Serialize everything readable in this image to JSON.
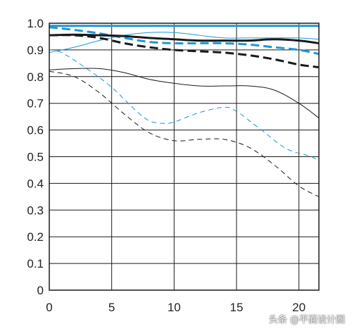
{
  "chart_data": {
    "type": "line",
    "title": "",
    "xlabel": "",
    "ylabel": "",
    "xlim": [
      0,
      21.6
    ],
    "ylim": [
      0,
      1.0
    ],
    "grid": true,
    "legend": "none",
    "x_ticks": [
      "0",
      "5",
      "10",
      "15",
      "20"
    ],
    "y_ticks": [
      "0",
      "0.1",
      "0.2",
      "0.3",
      "0.4",
      "0.5",
      "0.6",
      "0.7",
      "0.8",
      "0.9",
      "1.0"
    ],
    "colors": {
      "black": "#1a1a1a",
      "blue": "#1e96d6"
    },
    "series": [
      {
        "color": "blue",
        "width": "thick",
        "dash": false,
        "x": [
          0,
          5,
          10,
          15,
          20,
          21.6
        ],
        "y": [
          0.99,
          0.99,
          0.99,
          0.99,
          0.99,
          0.99
        ]
      },
      {
        "color": "blue",
        "width": "thick",
        "dash": true,
        "x": [
          0,
          2,
          4,
          6,
          8,
          10,
          12,
          14,
          16,
          18,
          20,
          21.6
        ],
        "y": [
          0.985,
          0.975,
          0.962,
          0.945,
          0.93,
          0.925,
          0.925,
          0.925,
          0.92,
          0.91,
          0.9,
          0.885
        ]
      },
      {
        "color": "blue",
        "width": "thin",
        "dash": false,
        "x": [
          0,
          2,
          4,
          6,
          8,
          10,
          12,
          14,
          16,
          18,
          20,
          21.6
        ],
        "y": [
          0.89,
          0.91,
          0.935,
          0.955,
          0.965,
          0.965,
          0.955,
          0.945,
          0.945,
          0.945,
          0.945,
          0.94
        ]
      },
      {
        "color": "blue",
        "width": "thin",
        "dash": true,
        "x": [
          0,
          1,
          3,
          5,
          7,
          8,
          9,
          10,
          12,
          14,
          15,
          17,
          19,
          21,
          21.6
        ],
        "y": [
          0.9,
          0.89,
          0.83,
          0.76,
          0.67,
          0.635,
          0.625,
          0.63,
          0.665,
          0.685,
          0.67,
          0.6,
          0.53,
          0.5,
          0.48
        ]
      },
      {
        "color": "black",
        "width": "thick",
        "dash": false,
        "x": [
          0,
          2,
          4,
          6,
          8,
          10,
          12,
          14,
          16,
          18,
          20,
          21.6
        ],
        "y": [
          0.955,
          0.957,
          0.955,
          0.952,
          0.945,
          0.94,
          0.935,
          0.935,
          0.935,
          0.94,
          0.935,
          0.925
        ]
      },
      {
        "color": "black",
        "width": "thick",
        "dash": true,
        "x": [
          0,
          2,
          4,
          6,
          8,
          10,
          12,
          14,
          16,
          18,
          20,
          21.6
        ],
        "y": [
          0.955,
          0.955,
          0.945,
          0.925,
          0.91,
          0.9,
          0.895,
          0.89,
          0.88,
          0.865,
          0.845,
          0.835
        ]
      },
      {
        "color": "black",
        "width": "thin",
        "dash": false,
        "x": [
          0,
          2,
          4,
          6,
          8,
          10,
          12,
          14,
          16,
          18,
          20,
          21.6
        ],
        "y": [
          0.825,
          0.83,
          0.83,
          0.815,
          0.79,
          0.775,
          0.765,
          0.765,
          0.765,
          0.75,
          0.7,
          0.645
        ]
      },
      {
        "color": "black",
        "width": "thin",
        "dash": true,
        "x": [
          0,
          2,
          4,
          6,
          8,
          10,
          12,
          14,
          16,
          18,
          20,
          21.6
        ],
        "y": [
          0.82,
          0.8,
          0.74,
          0.66,
          0.59,
          0.56,
          0.565,
          0.565,
          0.535,
          0.47,
          0.39,
          0.35
        ]
      }
    ]
  },
  "watermark": "头条 @平面设计图"
}
